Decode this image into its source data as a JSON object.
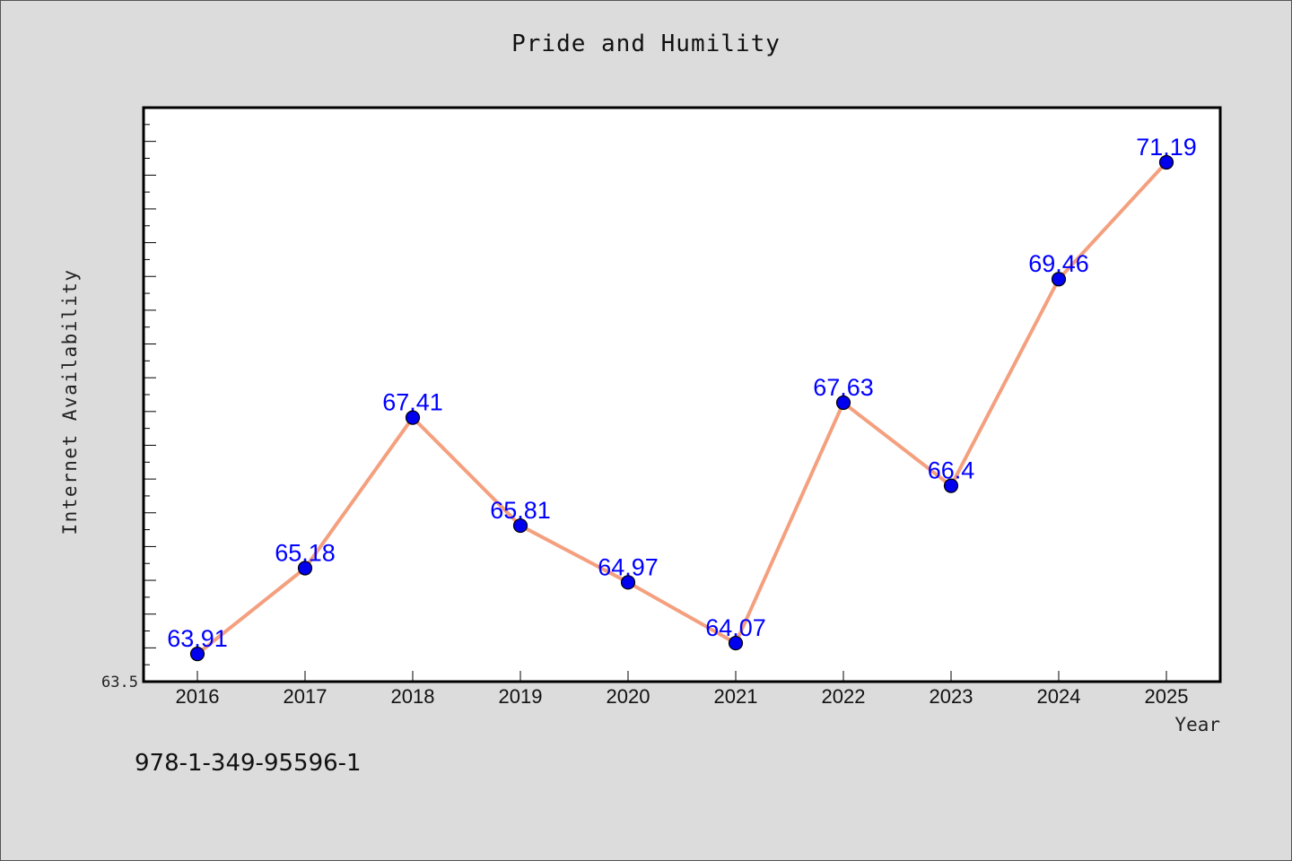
{
  "footer": {
    "isbn": "978-1-349-95596-1"
  },
  "colors": {
    "background": "#dcdcdc",
    "plot_bg": "#ffffff",
    "line": "#f4a07f",
    "marker": "#0000ee",
    "label": "#0000ff"
  },
  "chart_data": {
    "type": "line",
    "title": "Pride and Humility",
    "xlabel": "Year",
    "ylabel": "Internet Availability",
    "categories": [
      "2016",
      "2017",
      "2018",
      "2019",
      "2020",
      "2021",
      "2022",
      "2023",
      "2024",
      "2025"
    ],
    "series": [
      {
        "values": [
          63.91,
          65.18,
          67.41,
          65.81,
          64.97,
          64.07,
          67.63,
          66.4,
          69.46,
          71.19
        ]
      }
    ],
    "data_labels": [
      "63.91",
      "65.18",
      "67.41",
      "65.81",
      "64.97",
      "64.07",
      "67.63",
      "66.4",
      "69.46",
      "71.19"
    ],
    "ylim": [
      63.5,
      72.0
    ],
    "ytick_labels": [
      "63.5"
    ],
    "grid": false,
    "legend": "none"
  }
}
